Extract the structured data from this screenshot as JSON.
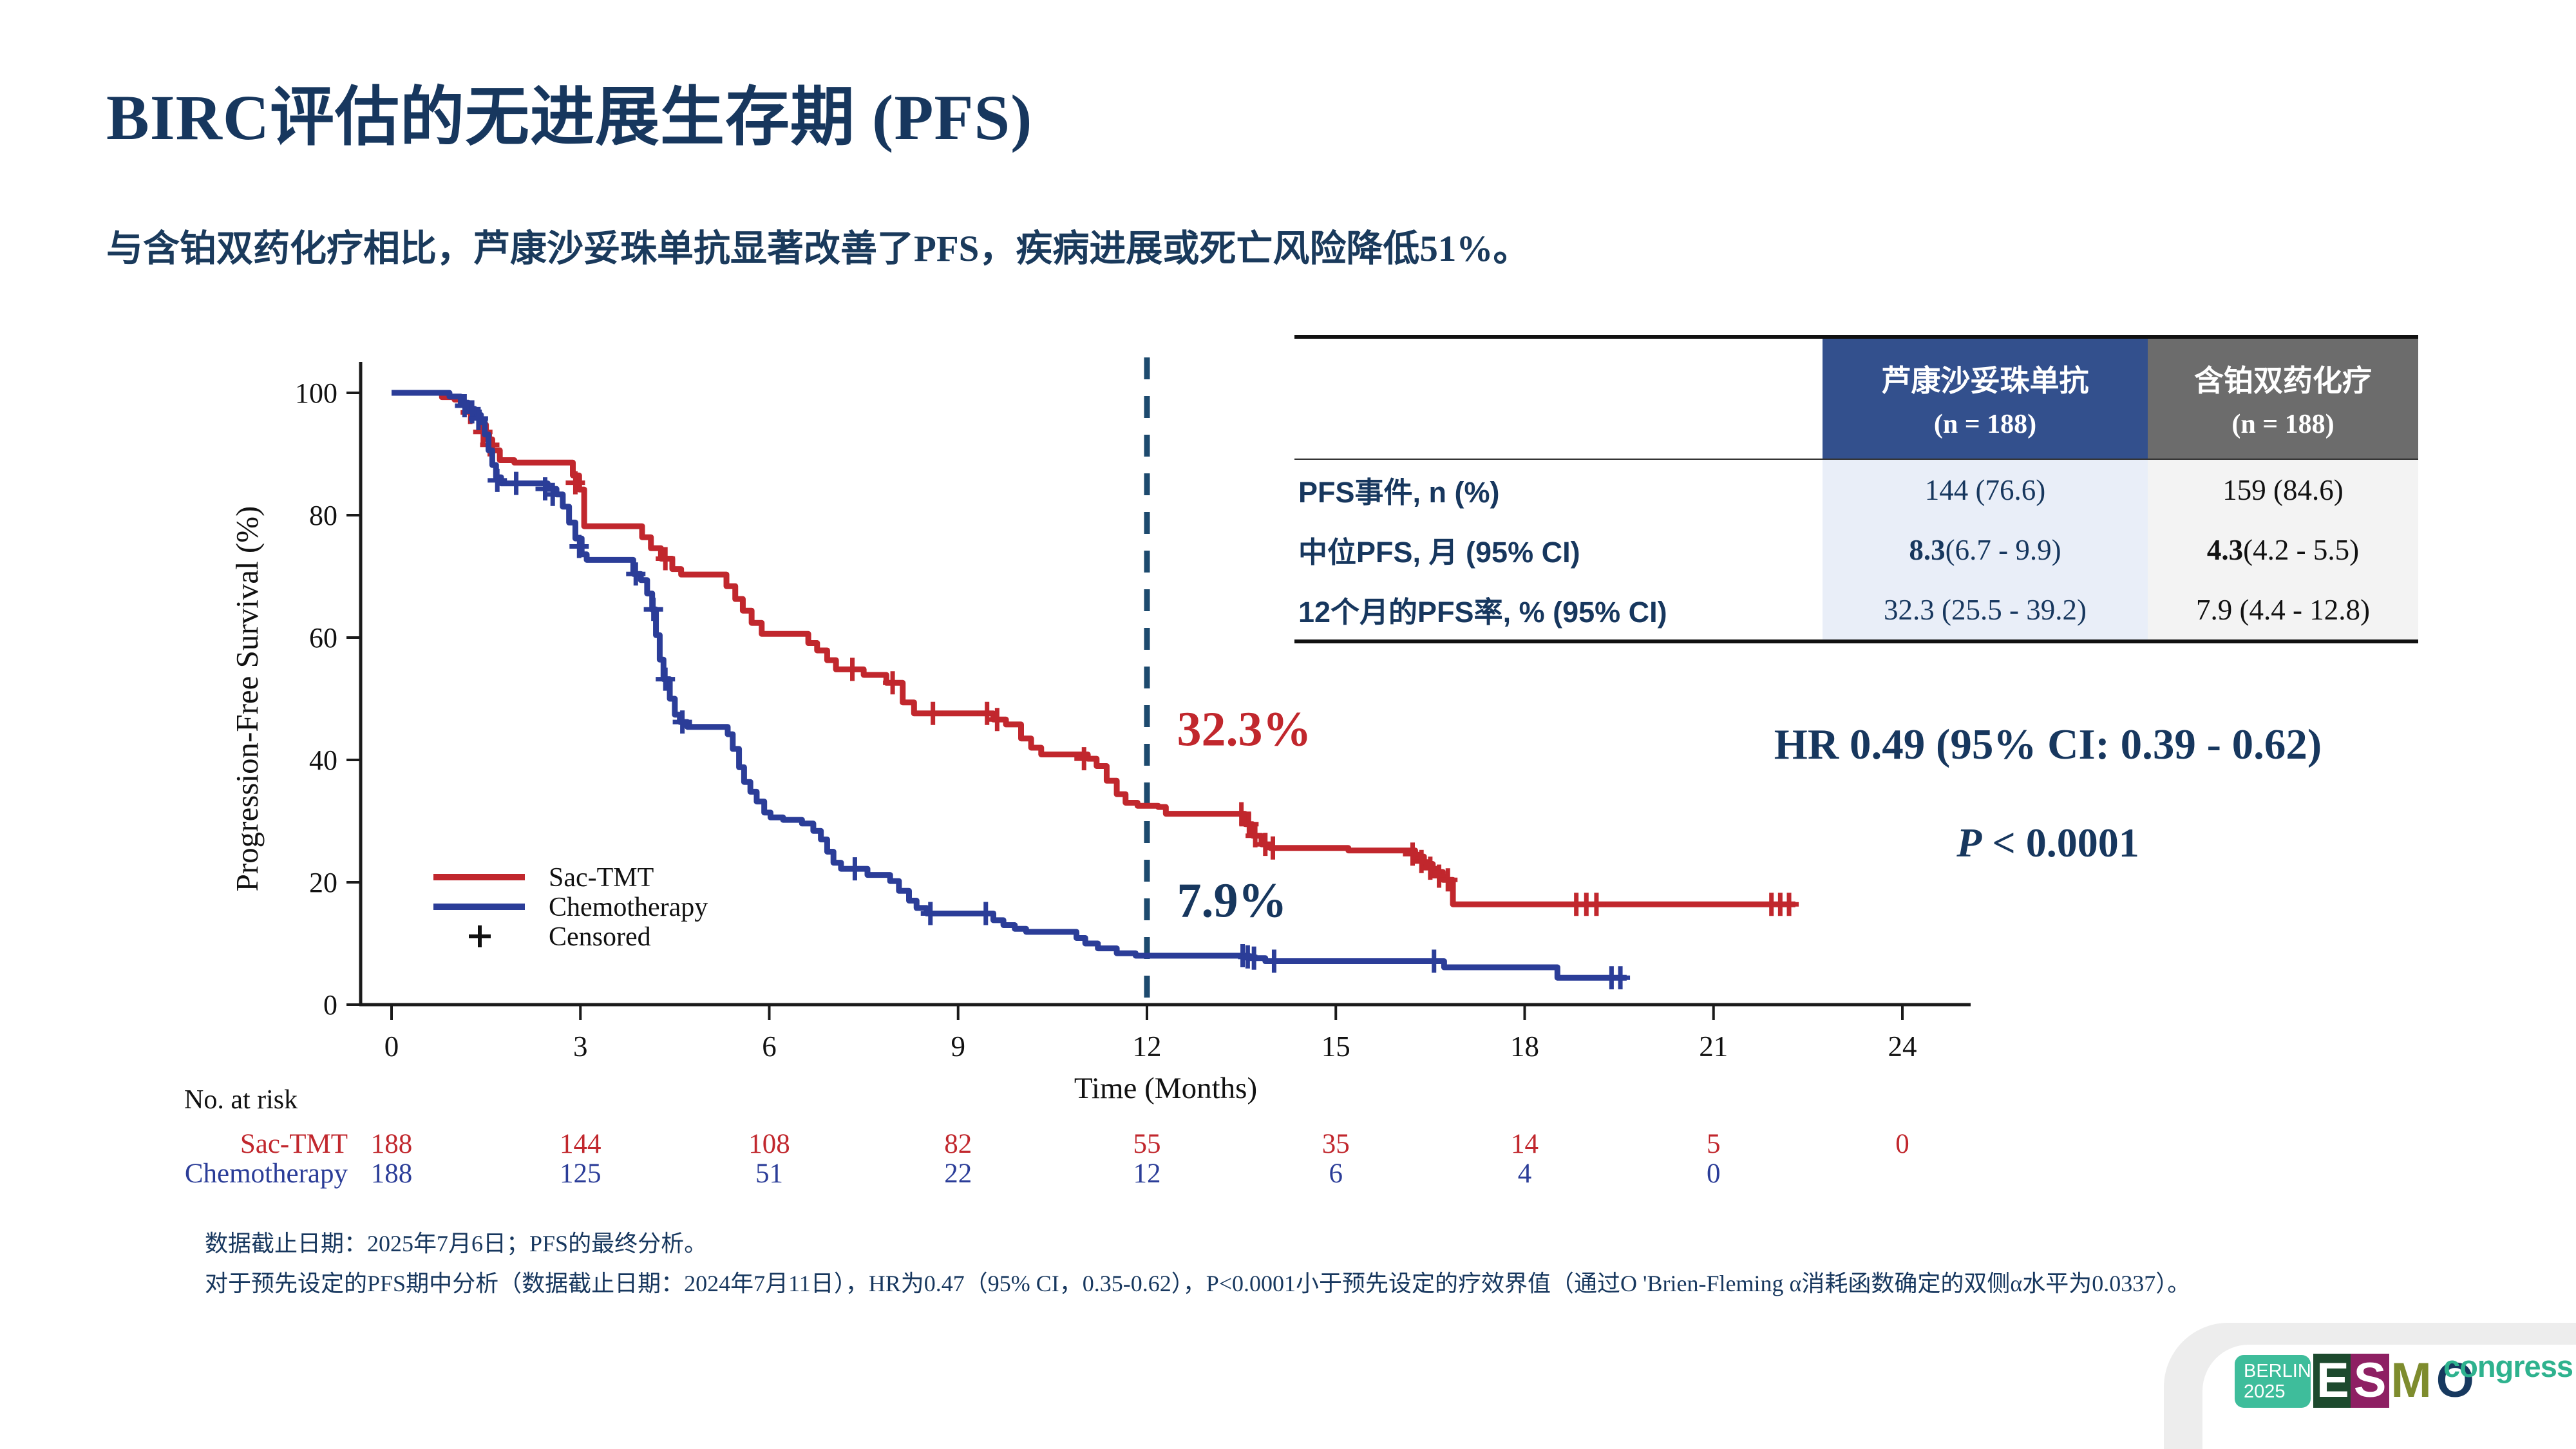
{
  "slide": {
    "title": "BIRC评估的无进展生存期 (PFS)",
    "subtitle": "与含铂双药化疗相比，芦康沙妥珠单抗显著改善了PFS，疾病进展或死亡风险降低51%。"
  },
  "chart_data": {
    "type": "line",
    "subtype": "kaplan-meier-step",
    "xlabel": "Time (Months)",
    "ylabel": "Progression-Free Survival (%)",
    "xlim": [
      0,
      24
    ],
    "xticks": [
      0,
      3,
      6,
      9,
      12,
      15,
      18,
      21,
      24
    ],
    "ylim": [
      0,
      100
    ],
    "yticks": [
      0,
      20,
      40,
      60,
      80,
      100
    ],
    "grid": false,
    "legend_position": "lower-left-inside",
    "reference_line": {
      "x": 12,
      "style": "dashed",
      "color": "#1d4a6e"
    },
    "annotations": [
      {
        "text": "32.3%",
        "x": 12.25,
        "y": 45,
        "color": "#c1272d"
      },
      {
        "text": "7.9%",
        "x": 12.25,
        "y": 17,
        "color": "#17375e"
      }
    ],
    "legend": [
      {
        "label": "Sac-TMT",
        "color": "#c1272d",
        "type": "line"
      },
      {
        "label": "Chemotherapy",
        "color": "#2b3d98",
        "type": "line"
      },
      {
        "label": "Censored",
        "color": "#111111",
        "type": "plus"
      }
    ],
    "series": [
      {
        "name": "Sac-TMT",
        "color": "#c1272d",
        "steps": [
          [
            0,
            100
          ],
          [
            0.75,
            100
          ],
          [
            0.8,
            99.3
          ],
          [
            1.0,
            98.9
          ],
          [
            1.1,
            98.2
          ],
          [
            1.2,
            97.4
          ],
          [
            1.3,
            96.3
          ],
          [
            1.4,
            94.8
          ],
          [
            1.5,
            92.4
          ],
          [
            1.6,
            90.6
          ],
          [
            1.72,
            89.0
          ],
          [
            1.95,
            88.6
          ],
          [
            2.8,
            88.6
          ],
          [
            2.88,
            86.5
          ],
          [
            2.98,
            84.2
          ],
          [
            3.06,
            78.2
          ],
          [
            3.88,
            78.2
          ],
          [
            3.98,
            76.4
          ],
          [
            4.12,
            74.6
          ],
          [
            4.28,
            72.9
          ],
          [
            4.46,
            71.2
          ],
          [
            4.6,
            70.3
          ],
          [
            5.22,
            70.3
          ],
          [
            5.32,
            68.4
          ],
          [
            5.46,
            66.3
          ],
          [
            5.58,
            64.4
          ],
          [
            5.72,
            62.4
          ],
          [
            5.88,
            60.6
          ],
          [
            6.52,
            60.6
          ],
          [
            6.62,
            59.1
          ],
          [
            6.76,
            57.9
          ],
          [
            6.92,
            56.3
          ],
          [
            7.06,
            54.8
          ],
          [
            7.5,
            53.9
          ],
          [
            7.86,
            52.6
          ],
          [
            8.12,
            49.4
          ],
          [
            8.3,
            47.6
          ],
          [
            9.42,
            47.6
          ],
          [
            9.56,
            46.6
          ],
          [
            9.76,
            45.8
          ],
          [
            10.0,
            43.5
          ],
          [
            10.16,
            42.0
          ],
          [
            10.32,
            40.9
          ],
          [
            11.06,
            40.2
          ],
          [
            11.2,
            39.0
          ],
          [
            11.36,
            36.6
          ],
          [
            11.52,
            34.4
          ],
          [
            11.66,
            33.0
          ],
          [
            11.85,
            32.5
          ],
          [
            12.18,
            32.3
          ],
          [
            12.3,
            31.2
          ],
          [
            13.48,
            31.2
          ],
          [
            13.56,
            29.5
          ],
          [
            13.68,
            27.6
          ],
          [
            13.82,
            26.2
          ],
          [
            13.96,
            25.6
          ],
          [
            15.2,
            25.2
          ],
          [
            16.12,
            25.2
          ],
          [
            16.26,
            24.2
          ],
          [
            16.4,
            23.0
          ],
          [
            16.54,
            21.7
          ],
          [
            16.7,
            20.4
          ],
          [
            16.86,
            16.4
          ],
          [
            22.3,
            16.4
          ]
        ],
        "censors": [
          [
            1.25,
            96.8
          ],
          [
            1.45,
            93.6
          ],
          [
            1.56,
            91.5
          ],
          [
            2.92,
            85.3
          ],
          [
            4.35,
            72.9
          ],
          [
            7.32,
            54.8
          ],
          [
            7.96,
            52.6
          ],
          [
            8.6,
            47.6
          ],
          [
            9.46,
            47.6
          ],
          [
            9.62,
            46.6
          ],
          [
            11.0,
            40.2
          ],
          [
            13.5,
            31.2
          ],
          [
            13.62,
            29.5
          ],
          [
            13.72,
            27.6
          ],
          [
            13.88,
            26.2
          ],
          [
            14.0,
            25.6
          ],
          [
            16.22,
            24.6
          ],
          [
            16.36,
            23.4
          ],
          [
            16.5,
            22.3
          ],
          [
            16.64,
            21.0
          ],
          [
            16.78,
            20.4
          ],
          [
            18.82,
            16.4
          ],
          [
            18.98,
            16.4
          ],
          [
            19.14,
            16.4
          ],
          [
            21.92,
            16.4
          ],
          [
            22.06,
            16.4
          ],
          [
            22.2,
            16.4
          ]
        ]
      },
      {
        "name": "Chemotherapy",
        "color": "#2b3d98",
        "steps": [
          [
            0,
            100
          ],
          [
            0.85,
            100
          ],
          [
            0.92,
            99.4
          ],
          [
            1.1,
            98.4
          ],
          [
            1.22,
            97.4
          ],
          [
            1.32,
            96.4
          ],
          [
            1.42,
            95.2
          ],
          [
            1.48,
            93.2
          ],
          [
            1.54,
            90.6
          ],
          [
            1.6,
            88.2
          ],
          [
            1.66,
            86.2
          ],
          [
            1.74,
            85.2
          ],
          [
            2.38,
            85.2
          ],
          [
            2.48,
            84.3
          ],
          [
            2.62,
            83.4
          ],
          [
            2.72,
            81.4
          ],
          [
            2.82,
            78.8
          ],
          [
            2.92,
            76.2
          ],
          [
            3.02,
            73.6
          ],
          [
            3.1,
            72.7
          ],
          [
            3.78,
            72.7
          ],
          [
            3.84,
            70.4
          ],
          [
            3.96,
            69.4
          ],
          [
            4.06,
            67.2
          ],
          [
            4.14,
            64.6
          ],
          [
            4.2,
            60.4
          ],
          [
            4.26,
            56.4
          ],
          [
            4.32,
            53.2
          ],
          [
            4.42,
            50.0
          ],
          [
            4.5,
            47.4
          ],
          [
            4.58,
            46.2
          ],
          [
            4.7,
            45.4
          ],
          [
            5.26,
            45.4
          ],
          [
            5.34,
            44.2
          ],
          [
            5.42,
            41.8
          ],
          [
            5.52,
            38.8
          ],
          [
            5.6,
            36.4
          ],
          [
            5.7,
            34.8
          ],
          [
            5.8,
            33.2
          ],
          [
            5.92,
            31.4
          ],
          [
            6.02,
            30.6
          ],
          [
            6.22,
            30.2
          ],
          [
            6.52,
            29.6
          ],
          [
            6.7,
            28.4
          ],
          [
            6.82,
            27.0
          ],
          [
            6.92,
            25.0
          ],
          [
            7.02,
            23.2
          ],
          [
            7.14,
            22.2
          ],
          [
            7.56,
            21.2
          ],
          [
            7.92,
            20.2
          ],
          [
            8.06,
            18.6
          ],
          [
            8.22,
            17.0
          ],
          [
            8.34,
            15.8
          ],
          [
            8.5,
            14.9
          ],
          [
            9.38,
            14.9
          ],
          [
            9.56,
            13.8
          ],
          [
            9.72,
            13.0
          ],
          [
            9.9,
            12.4
          ],
          [
            10.08,
            11.9
          ],
          [
            10.78,
            11.9
          ],
          [
            10.88,
            10.9
          ],
          [
            11.02,
            10.0
          ],
          [
            11.22,
            9.2
          ],
          [
            11.52,
            8.4
          ],
          [
            11.82,
            8.0
          ],
          [
            13.48,
            8.0
          ],
          [
            13.62,
            7.6
          ],
          [
            13.88,
            7.1
          ],
          [
            16.62,
            7.1
          ],
          [
            16.72,
            6.1
          ],
          [
            18.42,
            6.1
          ],
          [
            18.52,
            4.4
          ],
          [
            19.62,
            4.4
          ]
        ],
        "censors": [
          [
            1.16,
            97.9
          ],
          [
            1.28,
            96.9
          ],
          [
            1.38,
            95.8
          ],
          [
            1.68,
            85.7
          ],
          [
            1.98,
            85.2
          ],
          [
            2.44,
            84.3
          ],
          [
            2.56,
            83.4
          ],
          [
            2.98,
            74.9
          ],
          [
            3.88,
            70.4
          ],
          [
            4.16,
            64.6
          ],
          [
            4.35,
            53.2
          ],
          [
            4.62,
            46.2
          ],
          [
            7.36,
            22.2
          ],
          [
            8.56,
            14.9
          ],
          [
            9.44,
            14.9
          ],
          [
            13.52,
            8.0
          ],
          [
            13.6,
            7.8
          ],
          [
            13.7,
            7.6
          ],
          [
            14.02,
            7.1
          ],
          [
            16.56,
            7.1
          ],
          [
            19.38,
            4.4
          ],
          [
            19.52,
            4.4
          ]
        ]
      }
    ]
  },
  "table": {
    "col_headers": [
      {
        "line1": "芦康沙妥珠单抗",
        "line2": "(n = 188)"
      },
      {
        "line1": "含铂双药化疗",
        "line2": "(n = 188)"
      }
    ],
    "rows": [
      {
        "label": "PFS事件, n (%)",
        "a": "144 (76.6)",
        "b": "159 (84.6)",
        "lead_bold": false
      },
      {
        "label": "中位PFS, 月 (95% CI)",
        "a": "8.3 (6.7 - 9.9)",
        "b": "4.3 (4.2 - 5.5)",
        "lead_bold": true
      },
      {
        "label": "12个月的PFS率, % (95% CI)",
        "a": "32.3 (25.5 - 39.2)",
        "b": "7.9 (4.4 - 12.8)",
        "lead_bold": false
      }
    ]
  },
  "stats": {
    "hr_line": "HR 0.49 (95% CI: 0.39 - 0.62)",
    "p_italic": "P",
    "p_rest": " < 0.0001"
  },
  "risk_table": {
    "title": "No. at risk",
    "rows": [
      {
        "label": "Sac-TMT",
        "color": "#c1272d",
        "values": [
          "188",
          "144",
          "108",
          "82",
          "55",
          "35",
          "14",
          "5",
          "0"
        ]
      },
      {
        "label": "Chemotherapy",
        "color": "#2b3d98",
        "values": [
          "188",
          "125",
          "51",
          "22",
          "12",
          "6",
          "4",
          "0"
        ]
      }
    ]
  },
  "footnotes": [
    "数据截止日期：2025年7月6日；PFS的最终分析。",
    "对于预先设定的PFS期中分析（数据截止日期：2024年7月11日），HR为0.47（95% CI，0.35-0.62），P<0.0001小于预先设定的疗效界值（通过O 'Brien-Fleming α消耗函数确定的双侧α水平为0.0337）。"
  ],
  "logo": {
    "badge_line1": "BERLIN",
    "badge_line2": "2025",
    "badge_color": "#3ebd9b",
    "letters": [
      {
        "ch": "E",
        "mode": "block",
        "color": "#1d4a2e"
      },
      {
        "ch": "S",
        "mode": "block",
        "color": "#8e2063"
      },
      {
        "ch": "M",
        "mode": "glyph",
        "color": "#7e8c2e"
      },
      {
        "ch": "O",
        "mode": "glyph",
        "color": "#17395f"
      }
    ],
    "suffix": "congress",
    "suffix_color": "#2eb28e"
  }
}
